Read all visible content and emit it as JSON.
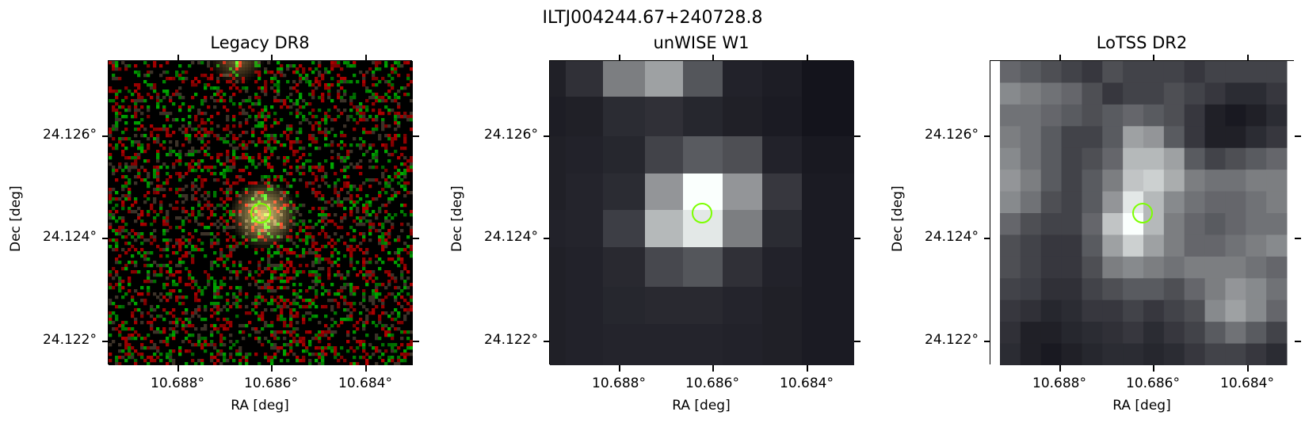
{
  "title": "ILTJ004244.67+240728.8",
  "panels": [
    {
      "title": "Legacy DR8",
      "xlabel": "RA [deg]",
      "ylabel": "Dec [deg]",
      "xticks": [
        "10.688°",
        "10.686°",
        "10.684°"
      ],
      "yticks": [
        "24.126°",
        "24.124°",
        "24.122°"
      ],
      "image": "legacy-color-cutout"
    },
    {
      "title": "unWISE W1",
      "xlabel": "RA [deg]",
      "ylabel": "Dec [deg]",
      "xticks": [
        "10.688°",
        "10.686°",
        "10.684°"
      ],
      "yticks": [
        "24.126°",
        "24.124°",
        "24.122°"
      ],
      "image": "unwise-grayscale-cutout"
    },
    {
      "title": "LoTSS DR2",
      "xlabel": "RA [deg]",
      "ylabel": "Dec [deg]",
      "xticks": [
        "10.688°",
        "10.686°",
        "10.684°"
      ],
      "yticks": [
        "24.126°",
        "24.124°",
        "24.122°"
      ],
      "image": "lotss-grayscale-cutout"
    }
  ],
  "colors": {
    "marker": "#7cff00",
    "frame": "#000000"
  }
}
